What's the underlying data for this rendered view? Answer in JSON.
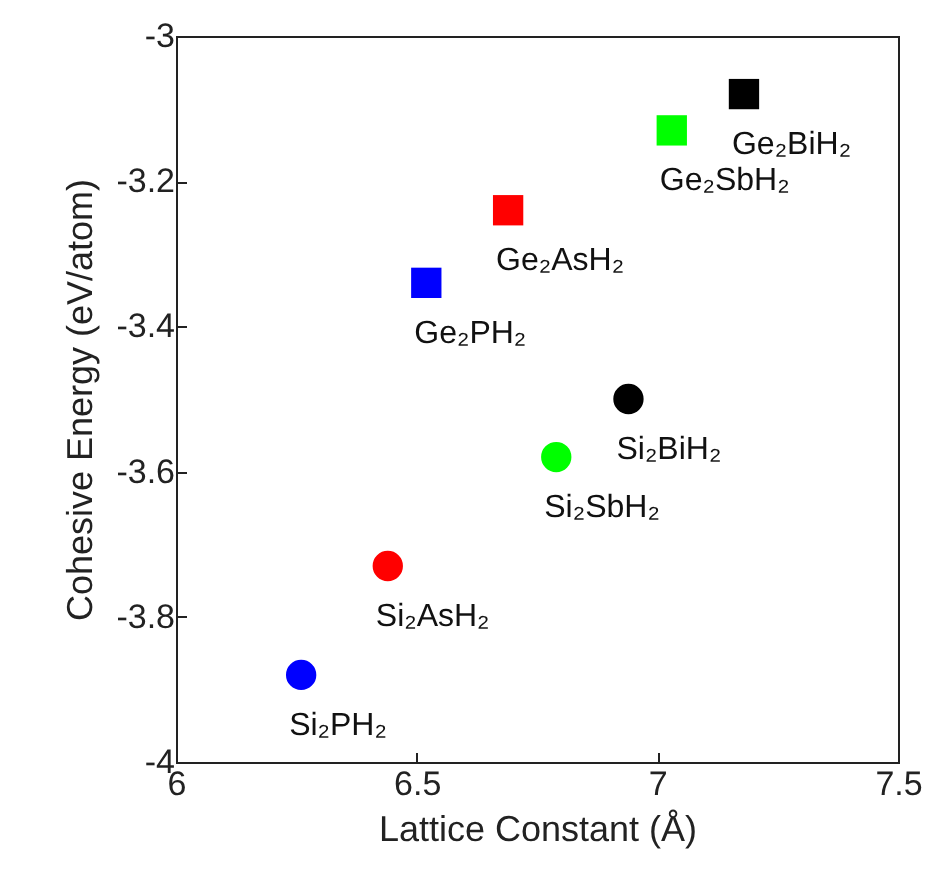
{
  "chart_data": {
    "type": "scatter",
    "xlabel": "Lattice Constant (Å)",
    "ylabel": "Cohesive Energy (eV/atom)",
    "xlim": [
      6,
      7.5
    ],
    "xticks": [
      6,
      6.5,
      7,
      7.5
    ],
    "ylim": [
      -4,
      -3
    ],
    "yticks": [
      -4,
      -3.8,
      -3.6,
      -3.4,
      -3.2,
      -3
    ],
    "grid": false,
    "series": [
      {
        "name": "Ge₂PH₂",
        "color": "#0000ff",
        "marker": "square",
        "x": [
          6.52
        ],
        "values": [
          -3.34
        ]
      },
      {
        "name": "Ge₂AsH₂",
        "color": "#ff0000",
        "marker": "square",
        "x": [
          6.69
        ],
        "values": [
          -3.24
        ]
      },
      {
        "name": "Ge₂SbH₂",
        "color": "#00ff00",
        "marker": "square",
        "x": [
          7.03
        ],
        "values": [
          -3.13
        ]
      },
      {
        "name": "Ge₂BiH₂",
        "color": "#000000",
        "marker": "square",
        "x": [
          7.18
        ],
        "values": [
          -3.08
        ]
      },
      {
        "name": "Si₂PH₂",
        "color": "#0000ff",
        "marker": "circle",
        "x": [
          6.26
        ],
        "values": [
          -3.88
        ]
      },
      {
        "name": "Si₂AsH₂",
        "color": "#ff0000",
        "marker": "circle",
        "x": [
          6.44
        ],
        "values": [
          -3.73
        ]
      },
      {
        "name": "Si₂SbH₂",
        "color": "#00ff00",
        "marker": "circle",
        "x": [
          6.79
        ],
        "values": [
          -3.58
        ]
      },
      {
        "name": "Si₂BiH₂",
        "color": "#000000",
        "marker": "circle",
        "x": [
          6.94
        ],
        "values": [
          -3.5
        ]
      }
    ]
  }
}
